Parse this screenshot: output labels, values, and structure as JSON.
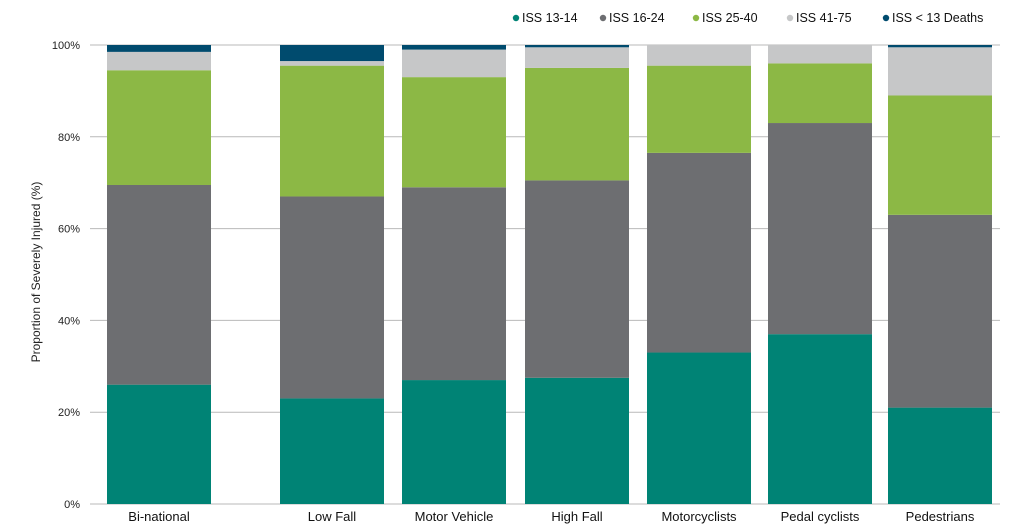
{
  "chart_data": {
    "type": "bar",
    "stacked": true,
    "ylabel": "Proportion of Severely Injured (%)",
    "ylim": [
      0,
      100
    ],
    "yticks": [
      "0%",
      "20%",
      "40%",
      "60%",
      "80%",
      "100%"
    ],
    "grid": true,
    "legend_position": "top-right",
    "categories": [
      "Bi-national",
      "Low Fall",
      "Motor Vehicle",
      "High Fall",
      "Motorcyclists",
      "Pedal cyclists",
      "Pedestrians"
    ],
    "series": [
      {
        "name": "ISS 13-14",
        "color": "#008375",
        "values": [
          26,
          23,
          27,
          27.5,
          33,
          37,
          21
        ]
      },
      {
        "name": "ISS 16-24",
        "color": "#6d6e71",
        "values": [
          43.5,
          44,
          42,
          43,
          43.5,
          46,
          42
        ]
      },
      {
        "name": "ISS 25-40",
        "color": "#8cb845",
        "values": [
          25,
          28.5,
          24,
          24.5,
          19,
          13,
          26
        ]
      },
      {
        "name": "ISS 41-75",
        "color": "#c6c7c8",
        "values": [
          4,
          1,
          6,
          4.5,
          4.5,
          4,
          10.5
        ]
      },
      {
        "name": "ISS < 13 Deaths",
        "color": "#004b6e",
        "values": [
          1.5,
          3.5,
          1,
          0.5,
          0,
          0,
          0.5
        ]
      }
    ]
  }
}
